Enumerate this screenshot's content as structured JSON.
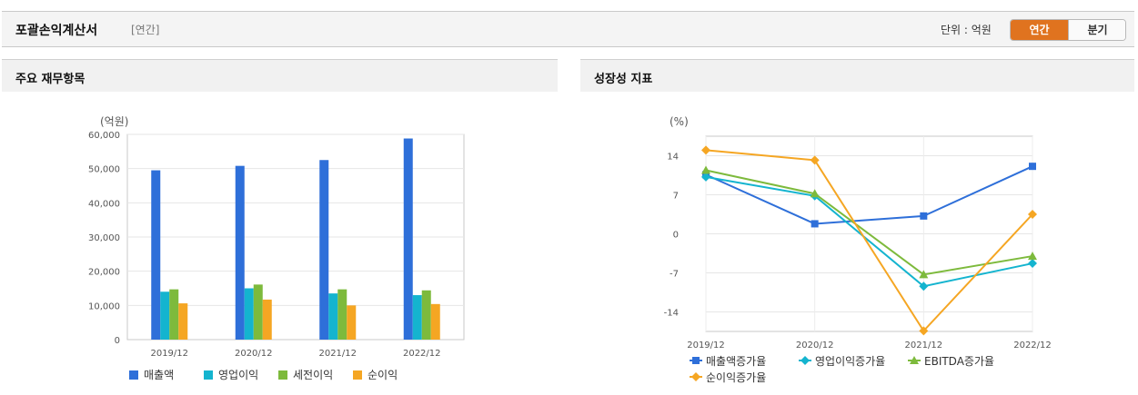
{
  "header": {
    "title": "포괄손익계산서",
    "subtitle": "[연간]",
    "unit": "단위 : 억원",
    "tabs": [
      "연간",
      "분기"
    ],
    "active_tab": "연간"
  },
  "left_panel": {
    "title": "주요 재무항목"
  },
  "right_panel": {
    "title": "성장성 지표"
  },
  "colors": {
    "accent": "#e0731f",
    "blue": "#2e6fd9",
    "cyan": "#14b4cf",
    "green": "#7dba3c",
    "orange": "#f5a623"
  },
  "chart_data": [
    {
      "type": "bar",
      "unit_label": "(억원)",
      "categories": [
        "2019/12",
        "2020/12",
        "2021/12",
        "2022/12"
      ],
      "series": [
        {
          "name": "매출액",
          "color": "#2e6fd9",
          "values": [
            49500,
            50800,
            52500,
            58800
          ]
        },
        {
          "name": "영업이익",
          "color": "#14b4cf",
          "values": [
            14000,
            15000,
            13500,
            13000
          ]
        },
        {
          "name": "세전이익",
          "color": "#7dba3c",
          "values": [
            14700,
            16100,
            14700,
            14400
          ]
        },
        {
          "name": "순이익",
          "color": "#f5a623",
          "values": [
            10600,
            11700,
            10000,
            10400
          ]
        }
      ],
      "ylim": [
        0,
        60000
      ],
      "yticks": [
        "0",
        "10,000",
        "20,000",
        "30,000",
        "40,000",
        "50,000",
        "60,000"
      ],
      "grid": true,
      "legend": "bottom"
    },
    {
      "type": "line",
      "unit_label": "(%)",
      "categories": [
        "2019/12",
        "2020/12",
        "2021/12",
        "2022/12"
      ],
      "series": [
        {
          "name": "매출액증가율",
          "color": "#2e6fd9",
          "marker": "square",
          "values": [
            10.6,
            1.8,
            3.2,
            12.1
          ]
        },
        {
          "name": "영업이익증가율",
          "color": "#14b4cf",
          "marker": "diamond",
          "values": [
            10.2,
            6.8,
            -9.4,
            -5.3
          ]
        },
        {
          "name": "EBITDA증가율",
          "color": "#7dba3c",
          "marker": "triangle",
          "values": [
            11.4,
            7.2,
            -7.3,
            -4.0
          ]
        },
        {
          "name": "순이익증가율",
          "color": "#f5a623",
          "marker": "diamond",
          "values": [
            15.0,
            13.2,
            -17.4,
            3.5
          ]
        }
      ],
      "ylim": [
        -17.5,
        17.5
      ],
      "yticks": [
        "-14",
        "-7",
        "0",
        "7",
        "14"
      ],
      "grid": true,
      "legend": "bottom"
    }
  ]
}
